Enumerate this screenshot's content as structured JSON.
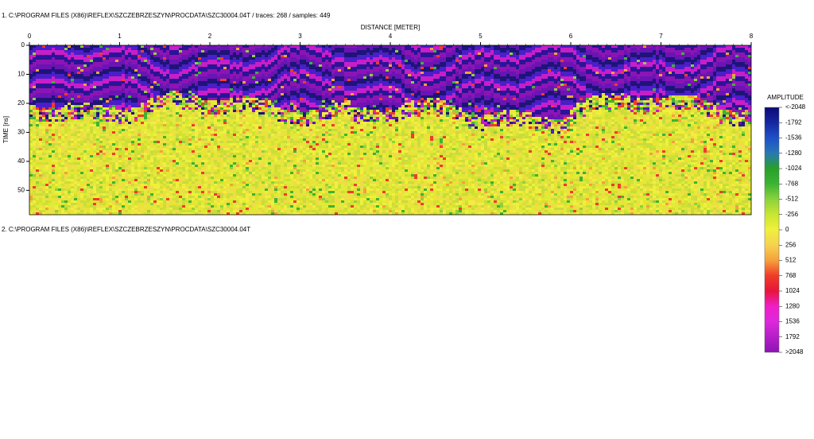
{
  "header": {
    "line1": "1. C:\\PROGRAM FILES (X86)\\REFLEX\\SZCZEBRZESZYN\\PROCDATA\\SZC30004.04T  / traces: 268 / samples: 449",
    "line2": "2. C:\\PROGRAM FILES (X86)\\REFLEX\\SZCZEBRZESZYN\\PROCDATA\\SZC30004.04T"
  },
  "chart_data": {
    "type": "radargram",
    "xlabel": "DISTANCE [METER]",
    "ylabel": "TIME [ns]",
    "xlim": [
      0,
      8
    ],
    "xticks": [
      0,
      1,
      2,
      3,
      4,
      5,
      6,
      7,
      8
    ],
    "ylim": [
      0,
      58.4
    ],
    "yticks": [
      0,
      10,
      20,
      30,
      40,
      50
    ],
    "colorbar": {
      "title": "AMPLITUDE",
      "ticks": [
        {
          "value": -2048,
          "label": "<-2048"
        },
        -1792,
        -1536,
        -1280,
        -1024,
        -768,
        -512,
        -256,
        0,
        256,
        512,
        768,
        1024,
        1280,
        1536,
        1792,
        {
          "value": 2048,
          "label": ">2048"
        }
      ],
      "colors": [
        "#0a0a78",
        "#1428a0",
        "#1e50c8",
        "#2878b4",
        "#28a028",
        "#3cb432",
        "#8cd23c",
        "#c8e632",
        "#f0f03c",
        "#f5d250",
        "#f5a03c",
        "#f03c28",
        "#e6143c",
        "#f01ec8",
        "#dc28dc",
        "#b41ec8",
        "#8c14b4"
      ]
    }
  }
}
